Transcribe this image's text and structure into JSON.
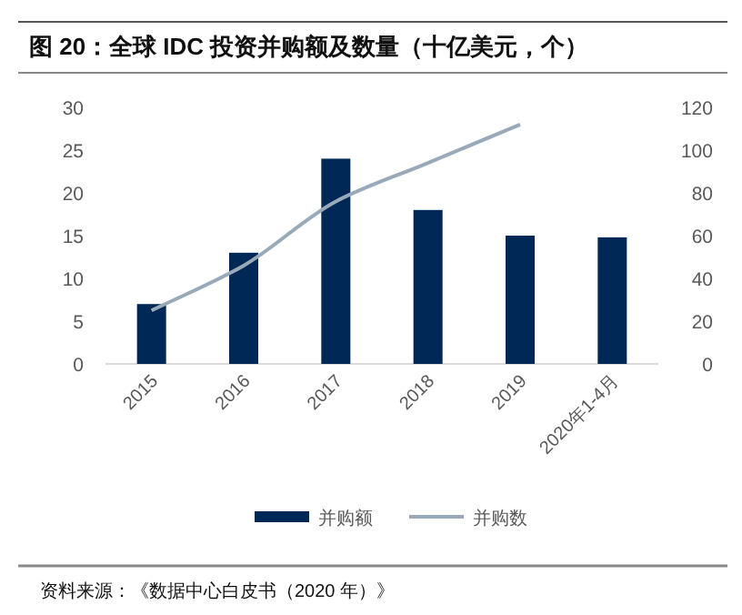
{
  "chart_data": {
    "type": "bar",
    "title": "图 20：全球 IDC 投资并购额及数量（十亿美元，个）",
    "categories": [
      "2015",
      "2016",
      "2017",
      "2018",
      "2019",
      "2020年1-4月"
    ],
    "series": [
      {
        "name": "并购额",
        "color": "#002856",
        "values": [
          7,
          13,
          24,
          18,
          15,
          14.8
        ]
      },
      {
        "name": "并购数",
        "type": "line",
        "axis": "y2",
        "color": "#98aab9",
        "values": [
          25,
          46,
          76,
          94,
          112,
          null
        ]
      }
    ],
    "ylim": [
      0,
      30
    ],
    "yticks": [
      0,
      5,
      10,
      15,
      20,
      25,
      30
    ],
    "y2lim": [
      0,
      120
    ],
    "y2ticks": [
      0,
      20,
      40,
      60,
      80,
      100,
      120
    ],
    "legend": "bottom",
    "grid": false,
    "marker": "none",
    "line_style": "solid",
    "annotations": [
      "资料来源：《数据中心白皮书（2020 年）》"
    ]
  }
}
